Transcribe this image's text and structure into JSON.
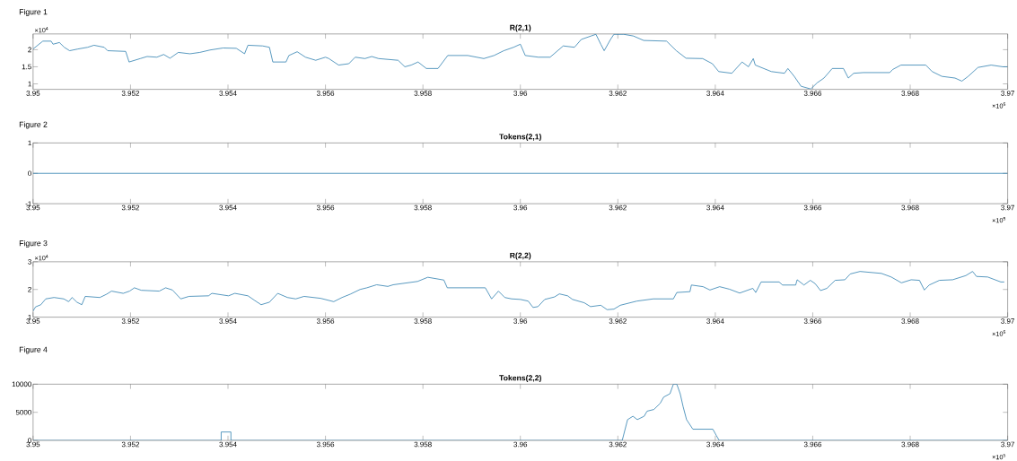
{
  "chart_data": [
    {
      "type": "line",
      "title": "R(2,1)",
      "annotations": [
        "Figure 1",
        "×10$^{4}$",
        "×10$^{5}$"
      ],
      "xlim": [
        3.95,
        3.97
      ],
      "ylim": [
        0.84,
        2.46
      ],
      "xticks": [
        3.95,
        3.952,
        3.954,
        3.956,
        3.958,
        3.96,
        3.962,
        3.964,
        3.966,
        3.968,
        3.97
      ],
      "yticks": [
        1,
        1.5,
        2
      ],
      "x": [
        3.95,
        3.9502,
        3.95037,
        3.95041,
        3.95054,
        3.95064,
        3.95075,
        3.95092,
        3.95112,
        3.95125,
        3.95146,
        3.95153,
        3.9519,
        3.95197,
        3.9522,
        3.95234,
        3.95254,
        3.95268,
        3.95281,
        3.95298,
        3.95322,
        3.95342,
        3.95363,
        3.9539,
        3.95417,
        3.95434,
        3.95441,
        3.95471,
        3.95485,
        3.95492,
        3.95519,
        3.95525,
        3.95542,
        3.95559,
        3.9558,
        3.956,
        3.95607,
        3.95627,
        3.95648,
        3.95661,
        3.95681,
        3.95695,
        3.95709,
        3.95749,
        3.95763,
        3.95776,
        3.9579,
        3.95807,
        3.95831,
        3.95851,
        3.95892,
        3.95925,
        3.95946,
        3.95966,
        3.95986,
        3.96,
        3.9601,
        3.96037,
        3.96061,
        3.96088,
        3.96111,
        3.96125,
        3.96145,
        3.96155,
        3.96165,
        3.96172,
        3.96185,
        3.96192,
        3.96212,
        3.96232,
        3.96253,
        3.963,
        3.9632,
        3.9634,
        3.96374,
        3.96394,
        3.96407,
        3.96434,
        3.96455,
        3.96468,
        3.96478,
        3.96482,
        3.96515,
        3.96542,
        3.96549,
        3.96562,
        3.96576,
        3.96596,
        3.96609,
        3.96623,
        3.9664,
        3.96663,
        3.96673,
        3.96684,
        3.96704,
        3.96758,
        3.96764,
        3.96781,
        3.96832,
        3.96845,
        3.96865,
        3.96892,
        3.96906,
        3.96919,
        3.96939,
        3.96966,
        3.9699,
        3.97
      ],
      "series": [
        {
          "color": "#2f7fb0",
          "values": [
            2.02,
            2.25,
            2.25,
            2.16,
            2.21,
            2.07,
            1.97,
            2.02,
            2.07,
            2.13,
            2.07,
            1.97,
            1.95,
            1.64,
            1.74,
            1.8,
            1.78,
            1.86,
            1.75,
            1.92,
            1.88,
            1.92,
            1.99,
            2.05,
            2.04,
            1.88,
            2.13,
            2.11,
            2.07,
            1.64,
            1.64,
            1.83,
            1.94,
            1.78,
            1.69,
            1.78,
            1.74,
            1.55,
            1.59,
            1.78,
            1.74,
            1.8,
            1.74,
            1.69,
            1.5,
            1.55,
            1.64,
            1.45,
            1.45,
            1.83,
            1.83,
            1.74,
            1.83,
            1.97,
            2.07,
            2.16,
            1.83,
            1.78,
            1.78,
            2.11,
            2.07,
            2.3,
            2.4,
            2.45,
            2.16,
            1.97,
            2.3,
            2.45,
            2.45,
            2.4,
            2.27,
            2.25,
            1.97,
            1.75,
            1.74,
            1.59,
            1.36,
            1.31,
            1.64,
            1.5,
            1.74,
            1.55,
            1.36,
            1.31,
            1.45,
            1.22,
            0.93,
            0.85,
            1.03,
            1.17,
            1.45,
            1.45,
            1.17,
            1.31,
            1.33,
            1.33,
            1.42,
            1.55,
            1.55,
            1.36,
            1.22,
            1.17,
            1.08,
            1.22,
            1.48,
            1.55,
            1.5,
            1.5
          ]
        }
      ]
    },
    {
      "type": "line",
      "title": "Tokens(2,1)",
      "annotations": [
        "Figure 2",
        "×10$^{5}$"
      ],
      "xlim": [
        3.95,
        3.97
      ],
      "ylim": [
        -1,
        1
      ],
      "xticks": [
        3.95,
        3.952,
        3.954,
        3.956,
        3.958,
        3.96,
        3.962,
        3.964,
        3.966,
        3.968,
        3.97
      ],
      "yticks": [
        -1,
        0,
        1
      ],
      "x": [
        3.95,
        3.97
      ],
      "series": [
        {
          "color": "#2f7fb0",
          "values": [
            0,
            0
          ]
        }
      ]
    },
    {
      "type": "line",
      "title": "R(2,2)",
      "annotations": [
        "Figure 3",
        "×10$^{4}$",
        "×10$^{5}$"
      ],
      "xlim": [
        3.95,
        3.97
      ],
      "ylim": [
        1,
        3
      ],
      "xticks": [
        3.95,
        3.952,
        3.954,
        3.956,
        3.958,
        3.96,
        3.962,
        3.964,
        3.966,
        3.968,
        3.97
      ],
      "yticks": [
        1,
        2,
        3
      ],
      "x": [
        3.95,
        3.95005,
        3.95016,
        3.95026,
        3.95043,
        3.95063,
        3.95073,
        3.9508,
        3.9509,
        3.951,
        3.95107,
        3.95137,
        3.95151,
        3.95161,
        3.95185,
        3.95198,
        3.95208,
        3.95222,
        3.95259,
        3.95272,
        3.95286,
        3.95303,
        3.9532,
        3.9536,
        3.95367,
        3.95401,
        3.95414,
        3.95441,
        3.95455,
        3.95468,
        3.95485,
        3.95502,
        3.95522,
        3.95539,
        3.95556,
        3.9559,
        3.95617,
        3.95634,
        3.95651,
        3.95671,
        3.95685,
        3.95705,
        3.95728,
        3.95739,
        3.95789,
        3.9581,
        3.95843,
        3.9585,
        3.95928,
        3.95941,
        3.95955,
        3.95968,
        3.95982,
        3.96,
        3.96016,
        3.96026,
        3.96036,
        3.9605,
        3.9607,
        3.9608,
        3.96097,
        3.96107,
        3.96131,
        3.96144,
        3.96165,
        3.96178,
        3.96192,
        3.96205,
        3.96239,
        3.96273,
        3.96314,
        3.96321,
        3.96348,
        3.96351,
        3.96375,
        3.96389,
        3.96409,
        3.96429,
        3.9645,
        3.96477,
        3.96483,
        3.96494,
        3.96531,
        3.96538,
        3.96565,
        3.96568,
        3.96582,
        3.96595,
        3.96605,
        3.96616,
        3.96629,
        3.96646,
        3.96666,
        3.96677,
        3.96697,
        3.96741,
        3.96761,
        3.96782,
        3.96802,
        3.96819,
        3.96829,
        3.96839,
        3.9686,
        3.96887,
        3.96914,
        3.96928,
        3.96936,
        3.96959,
        3.96986,
        3.96993
      ],
      "series": [
        {
          "color": "#2f7fb0",
          "values": [
            1.22,
            1.37,
            1.45,
            1.66,
            1.71,
            1.66,
            1.56,
            1.71,
            1.54,
            1.45,
            1.75,
            1.71,
            1.83,
            1.94,
            1.86,
            1.94,
            2.06,
            1.97,
            1.94,
            2.06,
            1.98,
            1.66,
            1.75,
            1.77,
            1.86,
            1.77,
            1.86,
            1.77,
            1.6,
            1.45,
            1.54,
            1.86,
            1.71,
            1.66,
            1.75,
            1.68,
            1.56,
            1.71,
            1.83,
            2.0,
            2.06,
            2.17,
            2.11,
            2.17,
            2.29,
            2.44,
            2.34,
            2.06,
            2.06,
            1.66,
            1.94,
            1.71,
            1.66,
            1.64,
            1.58,
            1.35,
            1.38,
            1.64,
            1.73,
            1.84,
            1.77,
            1.64,
            1.52,
            1.38,
            1.43,
            1.27,
            1.29,
            1.43,
            1.58,
            1.66,
            1.66,
            1.89,
            1.92,
            2.16,
            2.1,
            1.98,
            2.1,
            2.01,
            1.87,
            2.04,
            1.89,
            2.27,
            2.27,
            2.16,
            2.16,
            2.35,
            2.16,
            2.33,
            2.21,
            1.96,
            2.04,
            2.33,
            2.35,
            2.56,
            2.65,
            2.58,
            2.45,
            2.24,
            2.35,
            2.33,
            1.98,
            2.16,
            2.33,
            2.35,
            2.5,
            2.65,
            2.47,
            2.45,
            2.27,
            2.27
          ]
        }
      ]
    },
    {
      "type": "line",
      "title": "Tokens(2,2)",
      "annotations": [
        "Figure 4",
        "×10$^{5}$"
      ],
      "xlim": [
        3.95,
        3.97
      ],
      "ylim": [
        0,
        10000
      ],
      "xticks": [
        3.95,
        3.952,
        3.954,
        3.956,
        3.958,
        3.96,
        3.962,
        3.964,
        3.966,
        3.968,
        3.97
      ],
      "yticks": [
        0,
        5000,
        10000
      ],
      "x": [
        3.95,
        3.95386,
        3.95386,
        3.95406,
        3.95406,
        3.96209,
        3.9622,
        3.96231,
        3.9624,
        3.96254,
        3.9626,
        3.96274,
        3.96287,
        3.96294,
        3.96307,
        3.96314,
        3.96321,
        3.96328,
        3.96334,
        3.96341,
        3.96354,
        3.96395,
        3.96402,
        3.96408,
        3.97
      ],
      "series": [
        {
          "color": "#2f7fb0",
          "values": [
            0,
            0,
            1500,
            1500,
            0,
            0,
            3700,
            4300,
            3700,
            4300,
            5200,
            5500,
            6600,
            7700,
            8300,
            10000,
            10000,
            8300,
            6000,
            3700,
            2000,
            2000,
            900,
            0,
            0
          ]
        }
      ]
    }
  ]
}
